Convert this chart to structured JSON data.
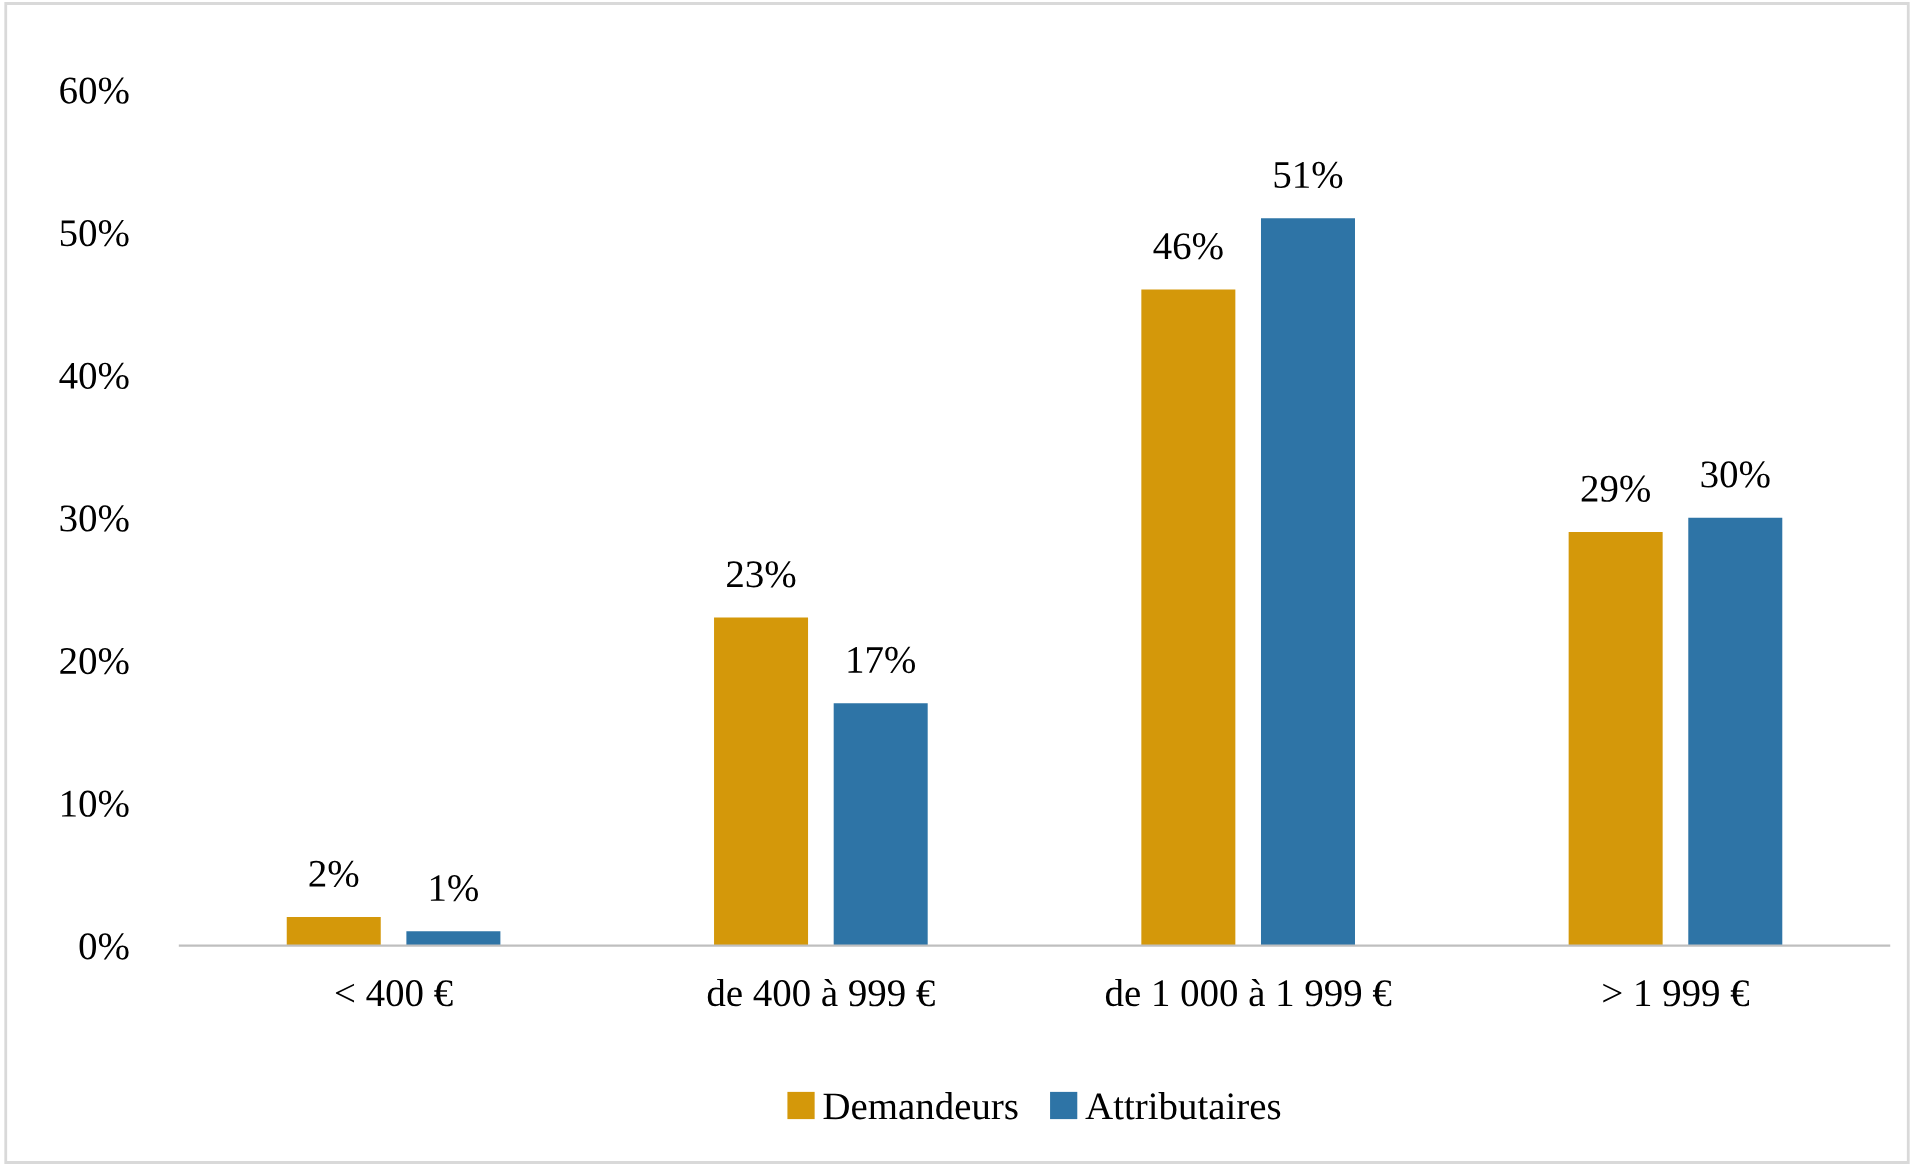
{
  "chart_data": {
    "type": "bar",
    "categories": [
      "< 400 €",
      "de 400 à 999 €",
      "de 1 000 à 1 999 €",
      "> 1 999 €"
    ],
    "series": [
      {
        "name": "Demandeurs",
        "color": "#d4980a",
        "values": [
          2,
          23,
          46,
          29
        ],
        "value_labels": [
          "2%",
          "23%",
          "46%",
          "29%"
        ]
      },
      {
        "name": "Attributaires",
        "color": "#2e74a6",
        "values": [
          1,
          17,
          51,
          30
        ],
        "value_labels": [
          "1%",
          "17%",
          "51%",
          "30%"
        ]
      }
    ],
    "ylim": [
      0,
      60
    ],
    "yticks": [
      {
        "value": 0,
        "label": "0%"
      },
      {
        "value": 10,
        "label": "10%"
      },
      {
        "value": 20,
        "label": "20%"
      },
      {
        "value": 30,
        "label": "30%"
      },
      {
        "value": 40,
        "label": "40%"
      },
      {
        "value": 50,
        "label": "50%"
      },
      {
        "value": 60,
        "label": "60%"
      }
    ],
    "grid": false,
    "legend": "bottom"
  }
}
